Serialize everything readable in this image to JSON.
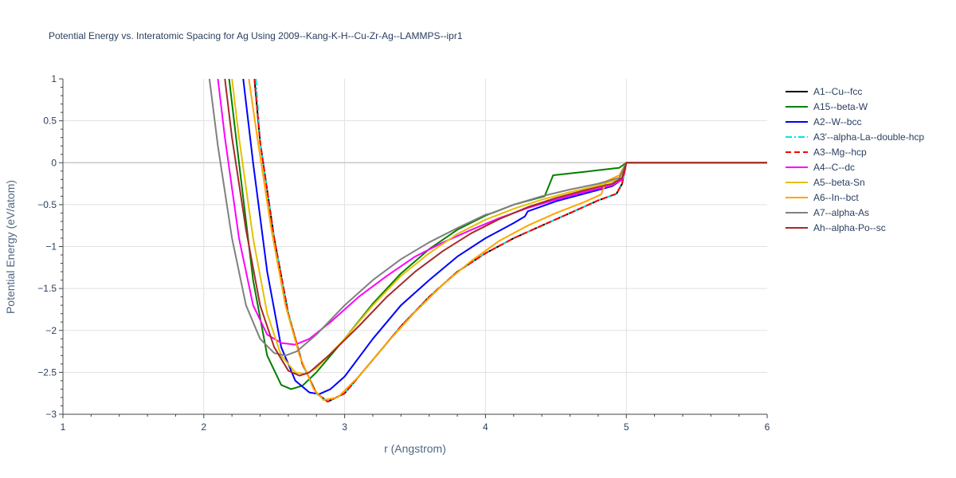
{
  "chart_data": {
    "type": "line",
    "title": "Potential Energy vs. Interatomic Spacing for Ag Using 2009--Kang-K-H--Cu-Zr-Ag--LAMMPS--ipr1",
    "xlabel": "r (Angstrom)",
    "ylabel": "Potential Energy (eV/atom)",
    "xlim": [
      1,
      6
    ],
    "ylim": [
      -3,
      1
    ],
    "x_ticks": [
      "1",
      "2",
      "3",
      "4",
      "5",
      "6"
    ],
    "y_ticks": [
      "1",
      "0.5",
      "0",
      "−0.5",
      "−1",
      "−1.5",
      "−2",
      "−2.5",
      "−3"
    ],
    "grid": true,
    "legend_position": "right",
    "series": [
      {
        "name": "A1--Cu--fcc",
        "color": "#000000",
        "dash": "solid",
        "points": [
          [
            2.36,
            1
          ],
          [
            2.4,
            0.25
          ],
          [
            2.5,
            -0.9
          ],
          [
            2.6,
            -1.8
          ],
          [
            2.7,
            -2.4
          ],
          [
            2.8,
            -2.75
          ],
          [
            2.88,
            -2.85
          ],
          [
            3.0,
            -2.75
          ],
          [
            3.2,
            -2.35
          ],
          [
            3.4,
            -1.95
          ],
          [
            3.6,
            -1.6
          ],
          [
            3.8,
            -1.3
          ],
          [
            4.0,
            -1.08
          ],
          [
            4.2,
            -0.9
          ],
          [
            4.4,
            -0.75
          ],
          [
            4.6,
            -0.6
          ],
          [
            4.8,
            -0.45
          ],
          [
            4.93,
            -0.37
          ],
          [
            4.97,
            -0.25
          ],
          [
            5.0,
            0
          ],
          [
            6.0,
            0
          ]
        ]
      },
      {
        "name": "A15--beta-W",
        "color": "#008000",
        "dash": "solid",
        "points": [
          [
            2.18,
            1
          ],
          [
            2.25,
            0
          ],
          [
            2.35,
            -1.4
          ],
          [
            2.45,
            -2.3
          ],
          [
            2.55,
            -2.65
          ],
          [
            2.62,
            -2.7
          ],
          [
            2.7,
            -2.66
          ],
          [
            2.8,
            -2.5
          ],
          [
            3.0,
            -2.1
          ],
          [
            3.2,
            -1.68
          ],
          [
            3.4,
            -1.32
          ],
          [
            3.6,
            -1.03
          ],
          [
            3.8,
            -0.8
          ],
          [
            4.0,
            -0.63
          ],
          [
            4.2,
            -0.5
          ],
          [
            4.42,
            -0.4
          ],
          [
            4.48,
            -0.15
          ],
          [
            4.7,
            -0.11
          ],
          [
            4.95,
            -0.06
          ],
          [
            5.0,
            0
          ],
          [
            6.0,
            0
          ]
        ]
      },
      {
        "name": "A2--W--bcc",
        "color": "#0000ff",
        "dash": "solid",
        "points": [
          [
            2.28,
            1
          ],
          [
            2.35,
            0
          ],
          [
            2.45,
            -1.3
          ],
          [
            2.55,
            -2.2
          ],
          [
            2.65,
            -2.6
          ],
          [
            2.75,
            -2.74
          ],
          [
            2.82,
            -2.76
          ],
          [
            2.9,
            -2.7
          ],
          [
            3.0,
            -2.55
          ],
          [
            3.2,
            -2.1
          ],
          [
            3.4,
            -1.7
          ],
          [
            3.6,
            -1.4
          ],
          [
            3.8,
            -1.12
          ],
          [
            4.0,
            -0.9
          ],
          [
            4.2,
            -0.72
          ],
          [
            4.28,
            -0.64
          ],
          [
            4.3,
            -0.58
          ],
          [
            4.5,
            -0.46
          ],
          [
            4.7,
            -0.37
          ],
          [
            4.9,
            -0.28
          ],
          [
            4.97,
            -0.2
          ],
          [
            5.0,
            0
          ],
          [
            6.0,
            0
          ]
        ]
      },
      {
        "name": "A3'--alpha-La--double-hcp",
        "color": "#00e5e5",
        "dash": "dashdot",
        "points": [
          [
            2.37,
            1
          ],
          [
            2.4,
            0.25
          ],
          [
            2.5,
            -0.9
          ],
          [
            2.6,
            -1.8
          ],
          [
            2.7,
            -2.4
          ],
          [
            2.8,
            -2.75
          ],
          [
            2.88,
            -2.85
          ],
          [
            3.0,
            -2.75
          ],
          [
            3.2,
            -2.35
          ],
          [
            3.4,
            -1.95
          ],
          [
            3.6,
            -1.6
          ],
          [
            3.8,
            -1.3
          ],
          [
            4.0,
            -1.08
          ],
          [
            4.2,
            -0.9
          ],
          [
            4.4,
            -0.75
          ],
          [
            4.6,
            -0.6
          ],
          [
            4.8,
            -0.45
          ],
          [
            4.93,
            -0.37
          ],
          [
            4.97,
            -0.25
          ],
          [
            5.0,
            0
          ],
          [
            6.0,
            0
          ]
        ]
      },
      {
        "name": "A3--Mg--hcp",
        "color": "#ff0000",
        "dash": "dash",
        "points": [
          [
            2.36,
            1
          ],
          [
            2.4,
            0.25
          ],
          [
            2.5,
            -0.9
          ],
          [
            2.6,
            -1.8
          ],
          [
            2.7,
            -2.4
          ],
          [
            2.8,
            -2.75
          ],
          [
            2.88,
            -2.85
          ],
          [
            3.0,
            -2.75
          ],
          [
            3.2,
            -2.35
          ],
          [
            3.4,
            -1.95
          ],
          [
            3.6,
            -1.6
          ],
          [
            3.8,
            -1.3
          ],
          [
            4.0,
            -1.08
          ],
          [
            4.2,
            -0.9
          ],
          [
            4.4,
            -0.75
          ],
          [
            4.6,
            -0.6
          ],
          [
            4.8,
            -0.45
          ],
          [
            4.93,
            -0.37
          ],
          [
            4.97,
            -0.25
          ],
          [
            5.0,
            0
          ],
          [
            6.0,
            0
          ]
        ]
      },
      {
        "name": "A4--C--dc",
        "color": "#ff00ff",
        "dash": "solid",
        "points": [
          [
            2.1,
            1
          ],
          [
            2.15,
            0.3
          ],
          [
            2.25,
            -0.9
          ],
          [
            2.35,
            -1.7
          ],
          [
            2.45,
            -2.05
          ],
          [
            2.55,
            -2.15
          ],
          [
            2.65,
            -2.17
          ],
          [
            2.75,
            -2.1
          ],
          [
            2.9,
            -1.9
          ],
          [
            3.1,
            -1.6
          ],
          [
            3.3,
            -1.35
          ],
          [
            3.5,
            -1.12
          ],
          [
            3.7,
            -0.95
          ],
          [
            3.9,
            -0.8
          ],
          [
            4.1,
            -0.66
          ],
          [
            4.3,
            -0.54
          ],
          [
            4.5,
            -0.44
          ],
          [
            4.7,
            -0.35
          ],
          [
            4.9,
            -0.27
          ],
          [
            4.97,
            -0.2
          ],
          [
            5.0,
            0
          ],
          [
            6.0,
            0
          ]
        ]
      },
      {
        "name": "A5--beta-Sn",
        "color": "#e6c000",
        "dash": "solid",
        "points": [
          [
            2.2,
            1
          ],
          [
            2.25,
            0.3
          ],
          [
            2.35,
            -0.9
          ],
          [
            2.45,
            -1.8
          ],
          [
            2.55,
            -2.3
          ],
          [
            2.65,
            -2.5
          ],
          [
            2.72,
            -2.52
          ],
          [
            2.8,
            -2.45
          ],
          [
            3.0,
            -2.1
          ],
          [
            3.2,
            -1.7
          ],
          [
            3.4,
            -1.35
          ],
          [
            3.6,
            -1.08
          ],
          [
            3.8,
            -0.85
          ],
          [
            4.0,
            -0.68
          ],
          [
            4.2,
            -0.55
          ],
          [
            4.4,
            -0.44
          ],
          [
            4.6,
            -0.35
          ],
          [
            4.8,
            -0.27
          ],
          [
            4.95,
            -0.2
          ],
          [
            5.0,
            0
          ],
          [
            6.0,
            0
          ]
        ]
      },
      {
        "name": "A6--In--bct",
        "color": "#ffa500",
        "dash": "solid",
        "points": [
          [
            2.32,
            1
          ],
          [
            2.38,
            0.3
          ],
          [
            2.48,
            -0.8
          ],
          [
            2.58,
            -1.7
          ],
          [
            2.68,
            -2.3
          ],
          [
            2.78,
            -2.7
          ],
          [
            2.85,
            -2.83
          ],
          [
            2.95,
            -2.8
          ],
          [
            3.1,
            -2.55
          ],
          [
            3.3,
            -2.15
          ],
          [
            3.5,
            -1.78
          ],
          [
            3.7,
            -1.45
          ],
          [
            3.9,
            -1.17
          ],
          [
            4.1,
            -0.93
          ],
          [
            4.3,
            -0.75
          ],
          [
            4.5,
            -0.6
          ],
          [
            4.7,
            -0.47
          ],
          [
            4.82,
            -0.38
          ],
          [
            4.86,
            -0.22
          ],
          [
            4.95,
            -0.15
          ],
          [
            5.0,
            0
          ],
          [
            6.0,
            0
          ]
        ]
      },
      {
        "name": "A7--alpha-As",
        "color": "#808080",
        "dash": "solid",
        "points": [
          [
            2.04,
            1
          ],
          [
            2.1,
            0.2
          ],
          [
            2.2,
            -0.9
          ],
          [
            2.3,
            -1.7
          ],
          [
            2.4,
            -2.1
          ],
          [
            2.5,
            -2.27
          ],
          [
            2.58,
            -2.3
          ],
          [
            2.66,
            -2.25
          ],
          [
            2.8,
            -2.05
          ],
          [
            3.0,
            -1.7
          ],
          [
            3.2,
            -1.4
          ],
          [
            3.4,
            -1.15
          ],
          [
            3.6,
            -0.95
          ],
          [
            3.8,
            -0.78
          ],
          [
            4.0,
            -0.62
          ],
          [
            4.05,
            -0.6
          ],
          [
            4.2,
            -0.5
          ],
          [
            4.4,
            -0.4
          ],
          [
            4.6,
            -0.32
          ],
          [
            4.8,
            -0.25
          ],
          [
            4.95,
            -0.18
          ],
          [
            5.0,
            0
          ],
          [
            6.0,
            0
          ]
        ]
      },
      {
        "name": "Ah--alpha-Po--sc",
        "color": "#a52a2a",
        "dash": "solid",
        "points": [
          [
            2.15,
            1
          ],
          [
            2.2,
            0.3
          ],
          [
            2.3,
            -0.8
          ],
          [
            2.4,
            -1.7
          ],
          [
            2.5,
            -2.2
          ],
          [
            2.6,
            -2.48
          ],
          [
            2.68,
            -2.54
          ],
          [
            2.75,
            -2.5
          ],
          [
            2.9,
            -2.28
          ],
          [
            3.1,
            -1.95
          ],
          [
            3.3,
            -1.6
          ],
          [
            3.5,
            -1.3
          ],
          [
            3.7,
            -1.05
          ],
          [
            3.9,
            -0.84
          ],
          [
            4.1,
            -0.67
          ],
          [
            4.3,
            -0.53
          ],
          [
            4.5,
            -0.42
          ],
          [
            4.7,
            -0.33
          ],
          [
            4.9,
            -0.25
          ],
          [
            4.97,
            -0.18
          ],
          [
            5.0,
            0
          ],
          [
            6.0,
            0
          ]
        ]
      }
    ]
  }
}
